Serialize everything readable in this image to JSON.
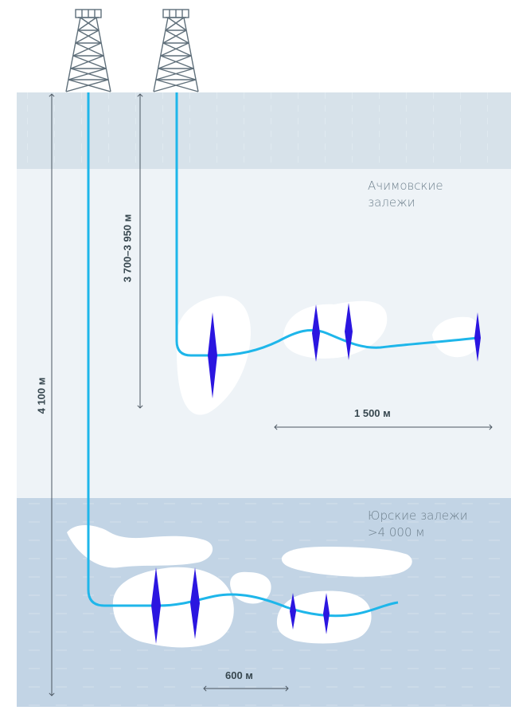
{
  "layers": {
    "achimov": {
      "line1": "Ачимовские",
      "line2": "залежи"
    },
    "jurassic": {
      "line1": "Юрские залежи",
      "line2": ">4 000 м"
    }
  },
  "dimensions": {
    "total_depth": "4 100 м",
    "achimov_depth": "3 700–3 950 м",
    "achimov_horizontal": "1 500 м",
    "jurassic_horizontal": "600 м"
  },
  "colors": {
    "well_line": "#1eb6ea",
    "well_horizontal": "#5ec1ec",
    "fracture": "#2b16e0",
    "upper_layer": "#d7e2ea",
    "achimov_layer": "#eef3f7",
    "jurassic_layer": "#c2d4e5",
    "dimension_line": "#4a5560"
  },
  "icons": [
    "drilling-rig-icon",
    "drilling-rig-icon"
  ]
}
